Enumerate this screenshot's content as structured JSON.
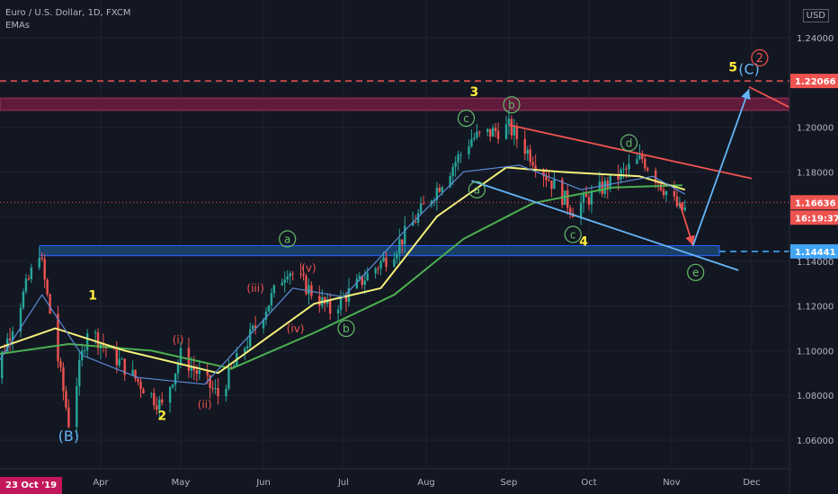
{
  "header": {
    "symbol": "Euro / U.S. Dollar, 1D, FXCM",
    "indicator": "EMAs",
    "currency_button": "USD"
  },
  "price_tags": {
    "top_line": "1.22066",
    "last_price": "1.16636",
    "countdown": "16:19:37",
    "support": "1.14441"
  },
  "cursor_date": "23 Oct '19",
  "colors": {
    "background": "#131722",
    "bull_candle": "#26a69a",
    "bear_candle": "#ef5350",
    "ema_fast": "#5b8cd8",
    "ema_mid": "#f5f07a",
    "ema_slow": "#4caf50",
    "resistance_zone": "#7b1e45",
    "support_zone": "#1e4d7d",
    "dashed_red": "#ef5350",
    "dashed_blue": "#42a5f5",
    "wave_yellow": "#ffeb3b",
    "wave_green": "#66bb6a",
    "wave_red": "#ef5350",
    "wave_blue": "#64b5f6"
  },
  "chart_data": {
    "type": "candlestick",
    "ylim": [
      1.05,
      1.26
    ],
    "y_ticks": [
      "1.24000",
      "1.22000",
      "1.20000",
      "1.18000",
      "1.16000",
      "1.14000",
      "1.12000",
      "1.10000",
      "1.08000",
      "1.06000"
    ],
    "x_ticks": [
      "Apr",
      "May",
      "Jun",
      "Jul",
      "Aug",
      "Sep",
      "Oct",
      "Nov",
      "Dec"
    ],
    "price_path": [
      [
        "2020-02-20",
        1.085
      ],
      [
        "2020-03-09",
        1.145
      ],
      [
        "2020-03-20",
        1.068
      ],
      [
        "2020-03-27",
        1.11
      ],
      [
        "2020-04-24",
        1.075
      ],
      [
        "2020-05-01",
        1.098
      ],
      [
        "2020-05-15",
        1.08
      ],
      [
        "2020-06-10",
        1.137
      ],
      [
        "2020-06-26",
        1.118
      ],
      [
        "2020-07-20",
        1.145
      ],
      [
        "2020-08-18",
        1.195
      ],
      [
        "2020-09-01",
        1.2
      ],
      [
        "2020-09-25",
        1.163
      ],
      [
        "2020-10-21",
        1.186
      ],
      [
        "2020-11-04",
        1.163
      ]
    ],
    "ema_fast": [
      [
        "2020-02-20",
        1.09
      ],
      [
        "2020-03-10",
        1.125
      ],
      [
        "2020-03-25",
        1.098
      ],
      [
        "2020-04-15",
        1.088
      ],
      [
        "2020-05-10",
        1.085
      ],
      [
        "2020-06-12",
        1.128
      ],
      [
        "2020-07-01",
        1.124
      ],
      [
        "2020-07-25",
        1.155
      ],
      [
        "2020-08-15",
        1.18
      ],
      [
        "2020-09-05",
        1.183
      ],
      [
        "2020-09-28",
        1.172
      ],
      [
        "2020-10-25",
        1.178
      ],
      [
        "2020-11-06",
        1.17
      ]
    ],
    "ema_mid": [
      [
        "2020-02-20",
        1.1
      ],
      [
        "2020-03-15",
        1.11
      ],
      [
        "2020-04-10",
        1.1
      ],
      [
        "2020-05-15",
        1.09
      ],
      [
        "2020-06-20",
        1.121
      ],
      [
        "2020-07-15",
        1.128
      ],
      [
        "2020-08-05",
        1.16
      ],
      [
        "2020-08-31",
        1.182
      ],
      [
        "2020-09-20",
        1.18
      ],
      [
        "2020-10-20",
        1.178
      ],
      [
        "2020-11-06",
        1.172
      ]
    ],
    "ema_slow": [
      [
        "2020-02-20",
        1.098
      ],
      [
        "2020-03-20",
        1.103
      ],
      [
        "2020-04-20",
        1.1
      ],
      [
        "2020-05-20",
        1.092
      ],
      [
        "2020-06-20",
        1.108
      ],
      [
        "2020-07-20",
        1.125
      ],
      [
        "2020-08-15",
        1.15
      ],
      [
        "2020-09-10",
        1.166
      ],
      [
        "2020-10-10",
        1.173
      ],
      [
        "2020-11-05",
        1.174
      ]
    ],
    "zones": [
      {
        "name": "resistance",
        "from": 1.2075,
        "to": 1.213
      },
      {
        "name": "support",
        "from": 1.1425,
        "to": 1.147
      }
    ],
    "dashed_levels": [
      {
        "name": "top",
        "value": 1.22066
      },
      {
        "name": "support",
        "value": 1.14441
      }
    ],
    "trendlines": [
      {
        "name": "upper",
        "points": [
          [
            "2020-09-01",
            1.201
          ],
          [
            "2020-12-01",
            1.177
          ]
        ]
      },
      {
        "name": "lower",
        "points": [
          [
            "2020-08-18",
            1.176
          ],
          [
            "2020-11-26",
            1.136
          ]
        ]
      },
      {
        "name": "projection-down",
        "points": [
          [
            "2020-11-04",
            1.166
          ],
          [
            "2020-11-09",
            1.147
          ]
        ]
      },
      {
        "name": "projection-up",
        "points": [
          [
            "2020-11-09",
            1.147
          ],
          [
            "2020-11-30",
            1.217
          ]
        ]
      },
      {
        "name": "projection-red",
        "points": [
          [
            "2020-11-30",
            1.218
          ],
          [
            "2020-12-15",
            1.209
          ]
        ]
      }
    ],
    "wave_labels": [
      {
        "text": "(B)",
        "x": "2020-03-20",
        "y": 1.062,
        "style": "blue"
      },
      {
        "text": "1",
        "x": "2020-03-29",
        "y": 1.125,
        "style": "yellow"
      },
      {
        "text": "2",
        "x": "2020-04-24",
        "y": 1.071,
        "style": "yellow"
      },
      {
        "text": "(i)",
        "x": "2020-04-30",
        "y": 1.105,
        "style": "red"
      },
      {
        "text": "(ii)",
        "x": "2020-05-10",
        "y": 1.076,
        "style": "red"
      },
      {
        "text": "(iii)",
        "x": "2020-05-29",
        "y": 1.128,
        "style": "red"
      },
      {
        "text": "(iv)",
        "x": "2020-06-13",
        "y": 1.11,
        "style": "red"
      },
      {
        "text": "(v)",
        "x": "2020-06-18",
        "y": 1.137,
        "style": "red"
      },
      {
        "text": "a",
        "x": "2020-06-10",
        "y": 1.15,
        "style": "green-circle"
      },
      {
        "text": "b",
        "x": "2020-07-02",
        "y": 1.11,
        "style": "green-circle"
      },
      {
        "text": "3",
        "x": "2020-08-19",
        "y": 1.216,
        "style": "yellow"
      },
      {
        "text": "c",
        "x": "2020-08-16",
        "y": 1.204,
        "style": "green-circle"
      },
      {
        "text": "b",
        "x": "2020-09-02",
        "y": 1.21,
        "style": "green-circle"
      },
      {
        "text": "a",
        "x": "2020-08-20",
        "y": 1.172,
        "style": "green-circle"
      },
      {
        "text": "c",
        "x": "2020-09-25",
        "y": 1.152,
        "style": "green-circle"
      },
      {
        "text": "4",
        "x": "2020-09-29",
        "y": 1.149,
        "style": "yellow"
      },
      {
        "text": "d",
        "x": "2020-10-16",
        "y": 1.193,
        "style": "green-circle"
      },
      {
        "text": "e",
        "x": "2020-11-10",
        "y": 1.135,
        "style": "green-circle"
      },
      {
        "text": "5",
        "x": "2020-11-24",
        "y": 1.227,
        "style": "yellow"
      },
      {
        "text": "(C)",
        "x": "2020-11-30",
        "y": 1.226,
        "style": "blue"
      },
      {
        "text": "2",
        "x": "2020-12-04",
        "y": 1.231,
        "style": "red-circle"
      }
    ]
  }
}
